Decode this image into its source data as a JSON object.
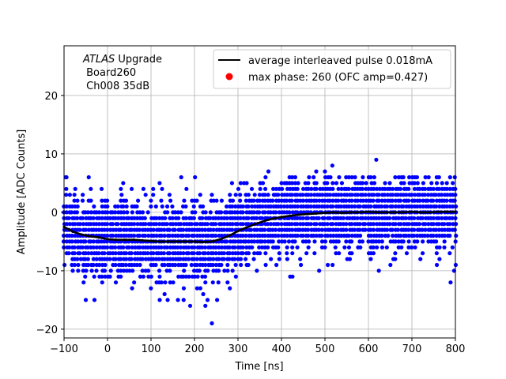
{
  "chart_data": {
    "type": "scatter",
    "xlabel": "Time [ns]",
    "ylabel": "Amplitude [ADC Counts]",
    "xlim": [
      -100,
      800
    ],
    "ylim": [
      -21.5,
      28.5
    ],
    "xticks": [
      -100,
      0,
      100,
      200,
      300,
      400,
      500,
      600,
      700,
      800
    ],
    "yticks": [
      -20,
      -10,
      0,
      10,
      20
    ],
    "grid": true,
    "legend_position": "top-right",
    "annotation": {
      "italic": "ATLAS",
      "rest": " Upgrade",
      "line2": " Board260",
      "line3": " Ch008 35dB"
    },
    "scatter_color": "#0000ff",
    "scatter_amplitude_levels": [
      -15,
      -14,
      -13,
      -12,
      -11,
      -10,
      -9,
      -8,
      -7,
      -6,
      -5,
      -4,
      -3,
      -2,
      -1,
      0,
      1,
      2,
      3,
      4,
      5,
      6
    ],
    "scatter_time_step_ns": 6.25,
    "scatter_outliers": [
      {
        "x": -96,
        "y": 6
      },
      {
        "x": 240,
        "y": -19
      },
      {
        "x": 618,
        "y": 9
      },
      {
        "x": 517,
        "y": 8
      },
      {
        "x": 370,
        "y": 7
      },
      {
        "x": 480,
        "y": 7
      },
      {
        "x": 500,
        "y": 7
      },
      {
        "x": 240,
        "y": 3
      },
      {
        "x": 797,
        "y": -10
      },
      {
        "x": 420,
        "y": -11
      },
      {
        "x": -50,
        "y": -15
      },
      {
        "x": -30,
        "y": -15
      },
      {
        "x": 175,
        "y": -15
      },
      {
        "x": 120,
        "y": -15
      },
      {
        "x": 190,
        "y": -16
      },
      {
        "x": 225,
        "y": -16
      },
      {
        "x": 252,
        "y": -15
      }
    ],
    "series": [
      {
        "name": "average interleaved pulse 0.018mA",
        "color": "#000000",
        "x": [
          -100,
          -80,
          -60,
          -40,
          -20,
          0,
          20,
          40,
          60,
          80,
          100,
          120,
          140,
          160,
          180,
          200,
          220,
          240,
          260,
          280,
          300,
          320,
          340,
          360,
          380,
          400,
          420,
          440,
          460,
          480,
          500,
          520,
          540,
          560,
          580,
          600,
          620,
          640,
          660,
          680,
          700,
          720,
          740,
          760,
          780,
          800
        ],
        "y": [
          -2.5,
          -3.3,
          -3.8,
          -4.1,
          -4.3,
          -4.6,
          -4.7,
          -4.7,
          -4.7,
          -4.8,
          -4.9,
          -5.0,
          -5.0,
          -5.0,
          -5.0,
          -5.0,
          -5.1,
          -5.0,
          -4.6,
          -4.0,
          -3.2,
          -2.6,
          -2.0,
          -1.5,
          -1.1,
          -0.8,
          -0.6,
          -0.4,
          -0.3,
          -0.2,
          -0.1,
          0.0,
          -0.1,
          0.0,
          0.0,
          0.1,
          0.0,
          0.0,
          0.0,
          0.0,
          0.1,
          0.0,
          0.0,
          0.1,
          0.1,
          0.1
        ]
      },
      {
        "name": "max phase: 260 (OFC amp=0.427)",
        "color": "#ff0000",
        "marker": "circle"
      }
    ]
  }
}
